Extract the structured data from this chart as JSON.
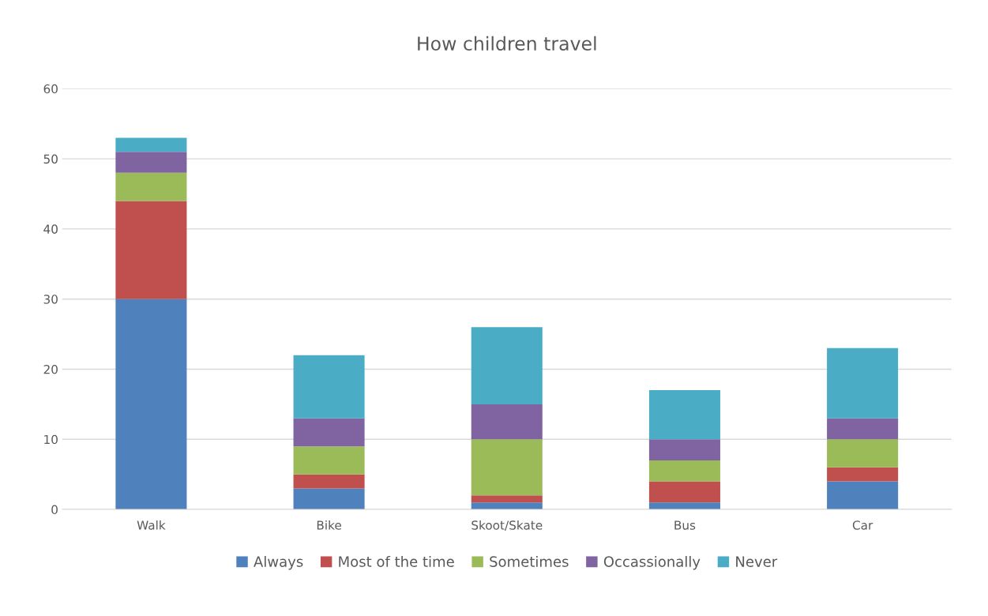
{
  "chart_data": {
    "type": "bar",
    "title": "How children travel",
    "categories": [
      "Walk",
      "Bike",
      "Skoot/Skate",
      "Bus",
      "Car"
    ],
    "stacked": true,
    "series": [
      {
        "name": "Always",
        "color": "#4f81bd",
        "values": [
          30,
          3,
          1,
          1,
          4
        ]
      },
      {
        "name": "Most of the time",
        "color": "#c0504d",
        "values": [
          14,
          2,
          1,
          3,
          2
        ]
      },
      {
        "name": "Sometimes",
        "color": "#9bbb59",
        "values": [
          4,
          4,
          8,
          3,
          4
        ]
      },
      {
        "name": "Occassionally",
        "color": "#8064a2",
        "values": [
          3,
          4,
          5,
          3,
          3
        ]
      },
      {
        "name": "Never",
        "color": "#4bacc6",
        "values": [
          2,
          9,
          11,
          7,
          10
        ]
      }
    ],
    "ylim": [
      0,
      60
    ],
    "yticks": [
      0,
      10,
      20,
      30,
      40,
      50,
      60
    ],
    "grid": "y",
    "legend": "bottom"
  }
}
